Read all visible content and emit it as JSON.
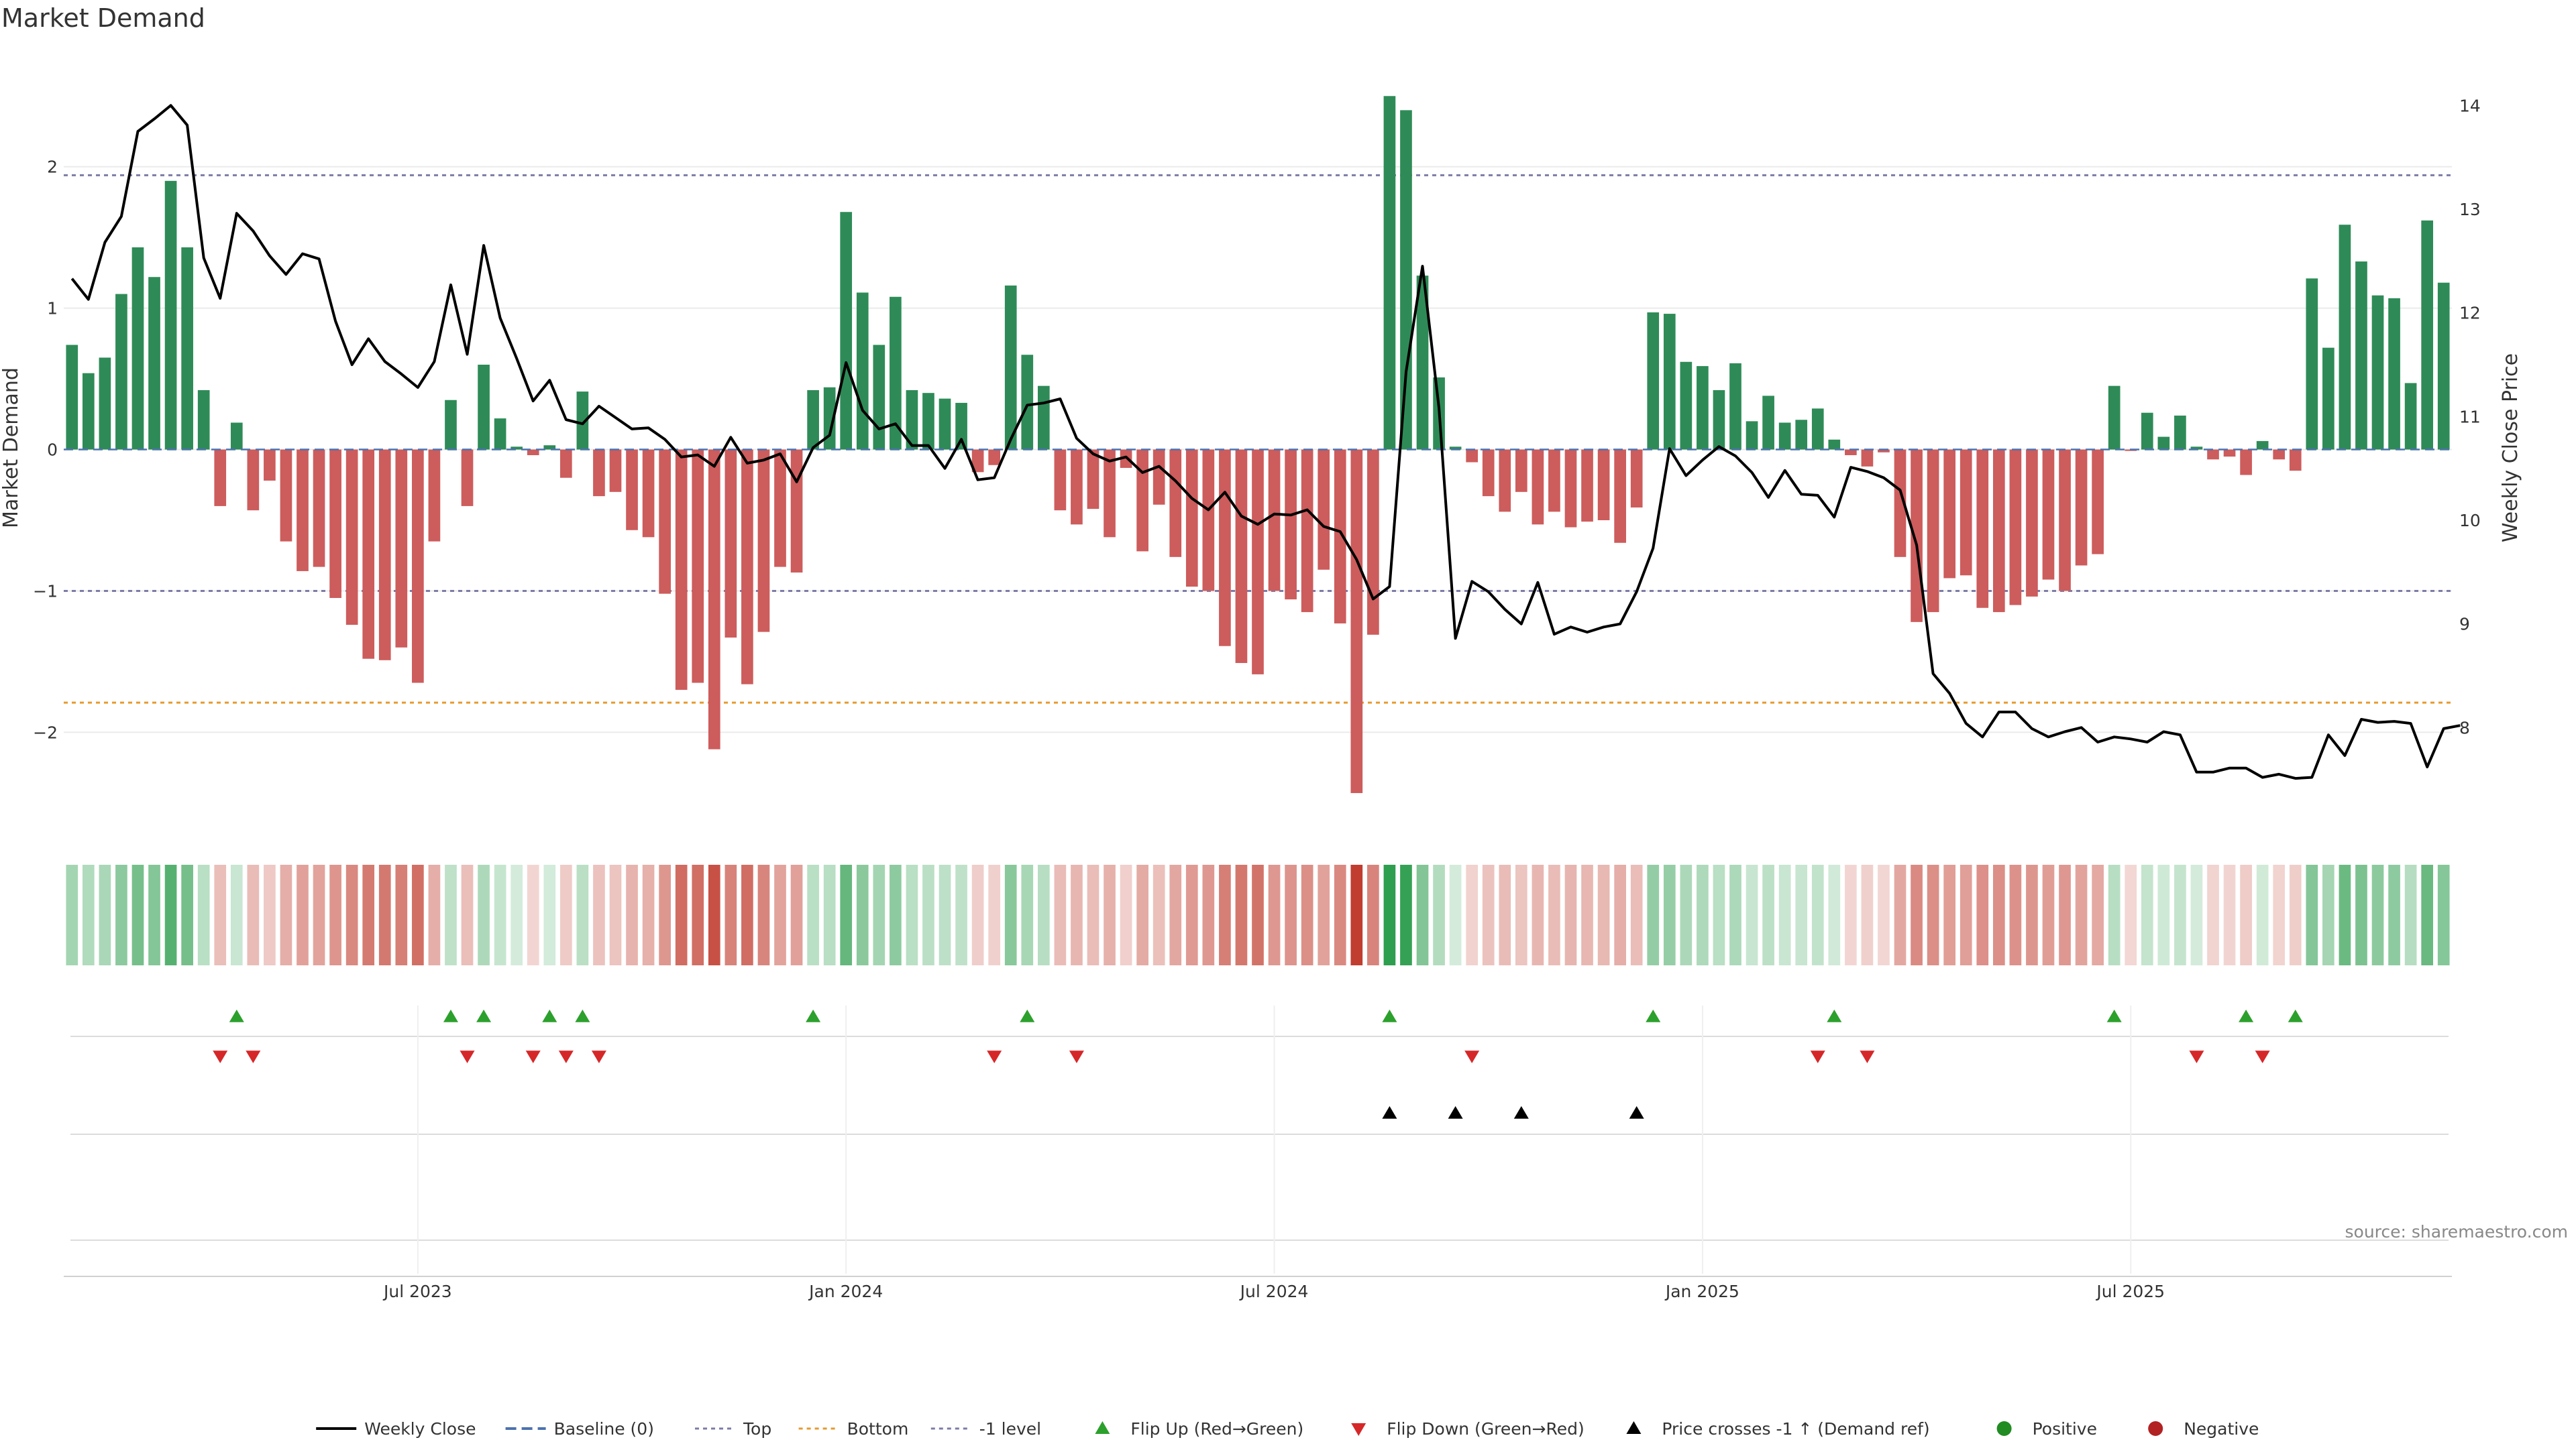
{
  "chart_data": {
    "type": "bar",
    "title": "Market Demand",
    "ylabel_left": "Market Demand",
    "ylabel_right": "Weekly Close Price",
    "ylim_left": [
      -2.7,
      2.8
    ],
    "ylim_right": [
      7.0,
      14.5
    ],
    "yticks_left": [
      2,
      1,
      0,
      -1,
      -2
    ],
    "ytick_labels_left": [
      "2",
      "1",
      "0",
      "−1",
      "−2"
    ],
    "yticks_right": [
      14,
      13,
      12,
      11,
      10,
      9,
      8
    ],
    "ytick_labels_right": [
      "14",
      "13",
      "12",
      "11",
      "10",
      "9",
      "8"
    ],
    "xtick_labels": [
      "Jul 2023",
      "Jan 2024",
      "Jul 2024",
      "Jan 2025",
      "Jul 2025"
    ],
    "reference_lines": {
      "top": 1.94,
      "bottom": -1.79,
      "minus_one": -1.0,
      "baseline": 0
    },
    "demand": [
      0.74,
      0.54,
      0.65,
      1.1,
      1.43,
      1.22,
      1.9,
      1.43,
      0.42,
      -0.4,
      0.19,
      -0.43,
      -0.22,
      -0.65,
      -0.86,
      -0.83,
      -1.05,
      -1.24,
      -1.48,
      -1.49,
      -1.4,
      -1.65,
      -0.65,
      0.35,
      -0.4,
      0.6,
      0.22,
      0.02,
      -0.04,
      0.03,
      -0.2,
      0.41,
      -0.33,
      -0.3,
      -0.57,
      -0.62,
      -1.02,
      -1.7,
      -1.65,
      -2.12,
      -1.33,
      -1.66,
      -1.29,
      -0.83,
      -0.87,
      0.42,
      0.44,
      1.68,
      1.11,
      0.74,
      1.08,
      0.42,
      0.4,
      0.36,
      0.33,
      -0.16,
      -0.11,
      1.16,
      0.67,
      0.45,
      -0.43,
      -0.53,
      -0.42,
      -0.62,
      -0.13,
      -0.72,
      -0.39,
      -0.76,
      -0.97,
      -1.0,
      -1.39,
      -1.51,
      -1.59,
      -1.0,
      -1.06,
      -1.15,
      -0.85,
      -1.23,
      -2.43,
      -1.31,
      2.5,
      2.4,
      1.23,
      0.51,
      0.02,
      -0.09,
      -0.33,
      -0.44,
      -0.3,
      -0.53,
      -0.44,
      -0.55,
      -0.51,
      -0.5,
      -0.66,
      -0.41,
      0.97,
      0.96,
      0.62,
      0.59,
      0.42,
      0.61,
      0.2,
      0.38,
      0.19,
      0.21,
      0.29,
      0.07,
      -0.04,
      -0.12,
      -0.02,
      -0.76,
      -1.22,
      -1.15,
      -0.91,
      -0.89,
      -1.12,
      -1.15,
      -1.1,
      -1.04,
      -0.92,
      -1.0,
      -0.82,
      -0.74,
      0.45,
      -0.01,
      0.26,
      0.09,
      0.24,
      0.02,
      -0.07,
      -0.05,
      -0.18,
      0.06,
      -0.07,
      -0.15,
      1.21,
      0.72,
      1.59,
      1.33,
      1.09,
      1.07,
      0.47,
      1.62,
      1.18
    ],
    "weekly_close": [
      12.33,
      12.13,
      12.68,
      12.93,
      13.75,
      13.87,
      14.0,
      13.81,
      12.53,
      12.14,
      12.96,
      12.79,
      12.55,
      12.37,
      12.57,
      12.52,
      11.92,
      11.5,
      11.75,
      11.53,
      11.41,
      11.28,
      11.53,
      12.27,
      11.6,
      12.65,
      11.95,
      11.56,
      11.15,
      11.35,
      10.97,
      10.93,
      11.1,
      10.99,
      10.88,
      10.89,
      10.78,
      10.61,
      10.63,
      10.52,
      10.8,
      10.55,
      10.58,
      10.64,
      10.37,
      10.7,
      10.82,
      11.52,
      11.06,
      10.88,
      10.93,
      10.72,
      10.72,
      10.5,
      10.78,
      10.39,
      10.41,
      10.78,
      11.11,
      11.13,
      11.17,
      10.79,
      10.64,
      10.57,
      10.61,
      10.46,
      10.52,
      10.38,
      10.21,
      10.1,
      10.27,
      10.04,
      9.96,
      10.06,
      10.05,
      10.1,
      9.94,
      9.89,
      9.62,
      9.24,
      9.36,
      11.43,
      12.45,
      11.08,
      8.86,
      9.41,
      9.31,
      9.14,
      9.0,
      9.4,
      8.9,
      8.97,
      8.92,
      8.97,
      9.0,
      9.31,
      9.73,
      10.69,
      10.43,
      10.58,
      10.71,
      10.62,
      10.46,
      10.22,
      10.48,
      10.25,
      10.24,
      10.03,
      10.51,
      10.47,
      10.41,
      10.29,
      9.76,
      8.52,
      8.33,
      8.04,
      7.91,
      8.15,
      8.15,
      7.99,
      7.91,
      7.96,
      8.0,
      7.86,
      7.91,
      7.89,
      7.86,
      7.96,
      7.93,
      7.57,
      7.57,
      7.61,
      7.61,
      7.52,
      7.55,
      7.51,
      7.52,
      7.93,
      7.73,
      8.08,
      8.05,
      8.06,
      8.04,
      7.62,
      7.99,
      8.02
    ],
    "flip_up_indices": [
      10,
      23,
      25,
      29,
      31,
      45,
      58,
      80,
      96,
      107,
      124,
      132,
      135
    ],
    "flip_down_indices": [
      9,
      11,
      24,
      28,
      30,
      32,
      56,
      61,
      85,
      106,
      109,
      129,
      133
    ],
    "price_cross_indices": [
      80,
      84,
      88,
      95
    ],
    "strip_legend": [
      "Positive",
      "Negative"
    ],
    "legend": [
      "Weekly Close",
      "Baseline (0)",
      "Top",
      "Bottom",
      "-1 level",
      "Flip Up (Red→Green)",
      "Flip Down (Green→Red)",
      "Price crosses -1 ↑ (Demand ref)",
      "Positive",
      "Negative"
    ],
    "source": "source: sharemaestro.com",
    "colors": {
      "positive": "#2e8b57",
      "negative": "#cd5c5c",
      "price": "#000000",
      "top": "#7c7ca8",
      "bottom": "#e69a2e",
      "flip_up": "#2ca02c",
      "flip_down": "#d62728",
      "cross": "#000000",
      "baseline": "#4c72b0"
    },
    "grid": true,
    "legend_position": "bottom-center"
  }
}
